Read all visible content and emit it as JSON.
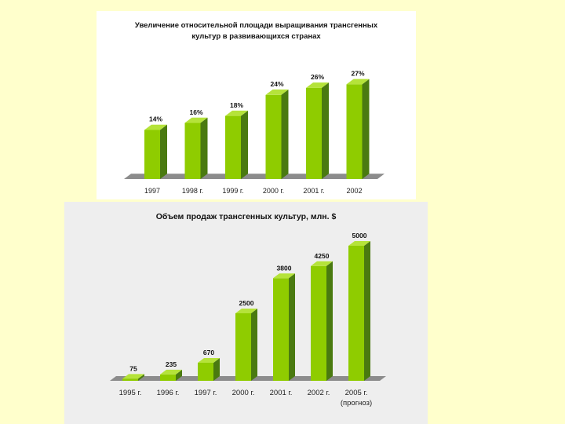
{
  "chart_data": [
    {
      "type": "bar",
      "title": "Увеличение относительной площади выращивания трансгенных культур в развивающихся странах",
      "categories": [
        "1997",
        "1998 г.",
        "1999 г.",
        "2000 г.",
        "2001 г.",
        "2002"
      ],
      "values": [
        14,
        16,
        18,
        24,
        26,
        27
      ],
      "data_labels": [
        "14%",
        "16%",
        "18%",
        "24%",
        "26%",
        "27%"
      ],
      "ylim": [
        0,
        30
      ],
      "grid": false,
      "legend": "none",
      "colors": {
        "bar_front": "#8fcc00",
        "bar_side": "#4a7a10",
        "bar_top": "#b5e33a",
        "floor": "#8c8c8c"
      }
    },
    {
      "type": "bar",
      "title": "Объем продаж трансгенных культур, млн. $",
      "categories": [
        "1995 г.",
        "1996 г.",
        "1997 г.",
        "2000 г.",
        "2001 г.",
        "2002 г.",
        "2005 г."
      ],
      "category_notes": [
        "",
        "",
        "",
        "",
        "",
        "",
        "(прогноз)"
      ],
      "values": [
        75,
        235,
        670,
        2500,
        3800,
        4250,
        5000
      ],
      "data_labels": [
        "75",
        "235",
        "670",
        "2500",
        "3800",
        "4250",
        "5000"
      ],
      "ylim": [
        0,
        5000
      ],
      "grid": false,
      "legend": "none",
      "colors": {
        "bar_front": "#8fcc00",
        "bar_side": "#4a7a10",
        "bar_top": "#b5e33a",
        "floor": "#8c8c8c"
      }
    }
  ]
}
